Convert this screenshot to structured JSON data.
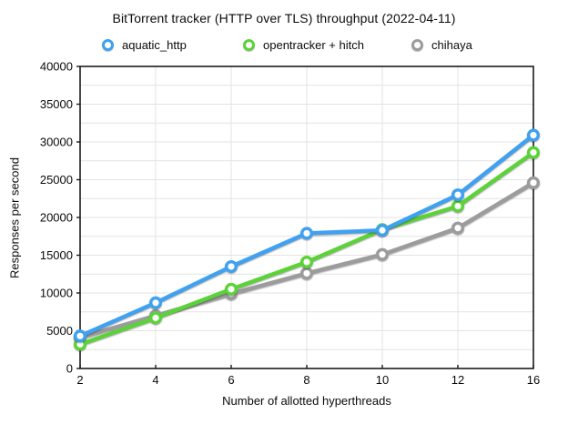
{
  "title": "BitTorrent tracker (HTTP over TLS) throughput (2022-04-11)",
  "axes": {
    "x_title": "Number of allotted hyperthreads",
    "y_title": "Responses per second"
  },
  "colors": {
    "aquatic": "#3EA1F2",
    "opentracker": "#5BD338",
    "chihaya": "#9C9C9C",
    "gridline": "#E3E3E3",
    "axis": "#1A1A1A"
  },
  "chart_data": {
    "type": "line",
    "title": "BitTorrent tracker (HTTP over TLS) throughput (2022-04-11)",
    "xlabel": "Number of allotted hyperthreads",
    "ylabel": "Responses per second",
    "categories": [
      "2",
      "4",
      "6",
      "8",
      "10",
      "12",
      "16"
    ],
    "x_spacing": "categorical-even",
    "ylim": [
      0,
      40000
    ],
    "y_tick_step": 5000,
    "y_minor_gridline_step": 2500,
    "y_tick_labels": [
      "0",
      "5000",
      "10000",
      "15000",
      "20000",
      "25000",
      "30000",
      "35000",
      "40000"
    ],
    "grid": true,
    "legend_position": "top",
    "marker": "open-circle",
    "series": [
      {
        "name": "aquatic_http",
        "color": "#3EA1F2",
        "values": [
          4300,
          8700,
          13500,
          17900,
          18300,
          23000,
          30900
        ]
      },
      {
        "name": "opentracker + hitch",
        "color": "#5BD338",
        "values": [
          3200,
          6700,
          10500,
          14100,
          18400,
          21500,
          28600
        ]
      },
      {
        "name": "chihaya",
        "color": "#9C9C9C",
        "values": [
          4100,
          7000,
          9900,
          12600,
          15100,
          18600,
          24600
        ]
      }
    ]
  }
}
